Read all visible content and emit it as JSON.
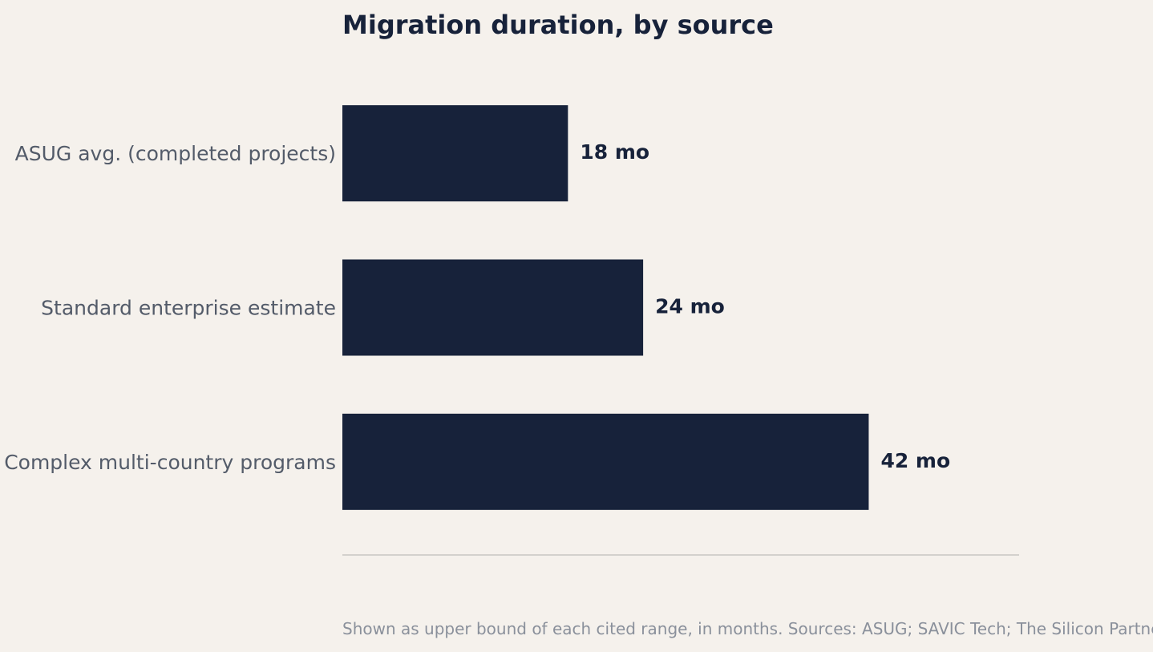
{
  "chart_data": {
    "type": "bar",
    "orientation": "horizontal",
    "title": "Migration duration, by source",
    "categories": [
      "ASUG avg. (completed projects)",
      "Standard enterprise estimate",
      "Complex multi-country programs"
    ],
    "values": [
      18,
      24,
      42
    ],
    "value_labels": [
      "18 mo",
      "24 mo",
      "42 mo"
    ],
    "xlim": [
      0,
      54
    ],
    "xlabel": "",
    "ylabel": "",
    "grid": false,
    "legend": "none",
    "bar_color": "#17223a",
    "baseline_color": "#d3d1cd",
    "note": "Shown as upper bound of each cited range, in months. Sources: ASUG; SAVIC Tech; The Silicon Partners."
  }
}
